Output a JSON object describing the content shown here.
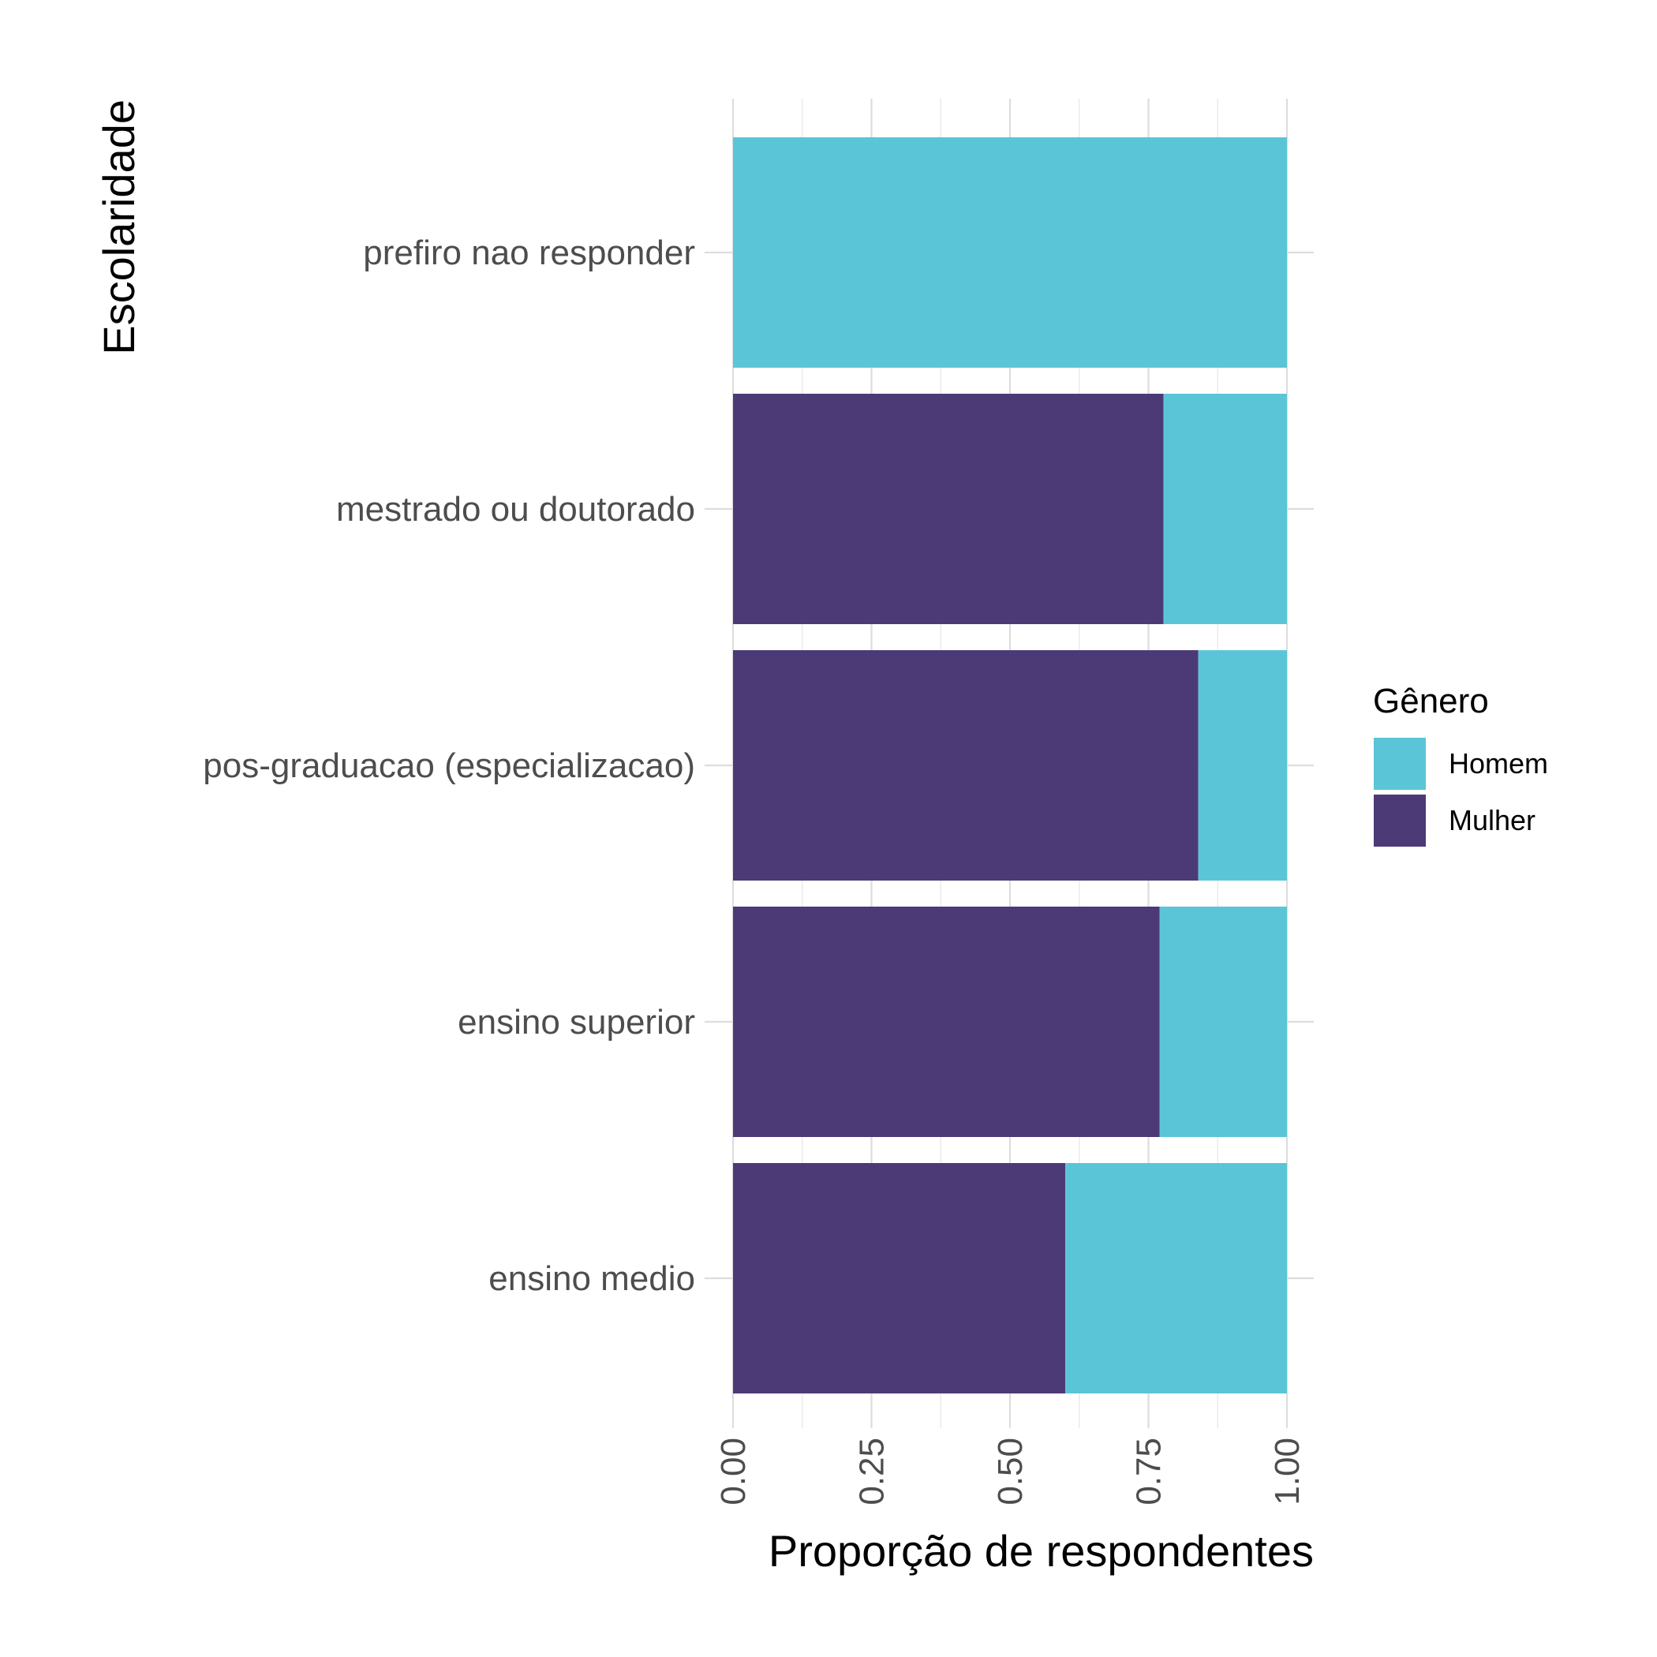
{
  "chart_data": {
    "type": "bar",
    "orientation": "horizontal",
    "stacked": true,
    "normalized": true,
    "xlabel": "Proporção de respondentes",
    "ylabel": "Escolaridade",
    "xlim": [
      0,
      1
    ],
    "x_ticks": [
      "0.00",
      "0.25",
      "0.50",
      "0.75",
      "1.00"
    ],
    "categories": [
      "prefiro nao responder",
      "mestrado ou doutorado",
      "pos-graduacao (especializacao)",
      "ensino superior",
      "ensino medio"
    ],
    "series": [
      {
        "name": "Mulher",
        "color": "#4c3a76",
        "values": [
          0.0,
          0.777,
          0.84,
          0.77,
          0.6
        ]
      },
      {
        "name": "Homem",
        "color": "#5bc5d8",
        "values": [
          1.0,
          0.223,
          0.16,
          0.23,
          0.4
        ]
      }
    ],
    "legend": {
      "title": "Gênero",
      "position": "right",
      "entries": [
        {
          "label": "Homem",
          "color": "#5bc5d8"
        },
        {
          "label": "Mulher",
          "color": "#4c3a76"
        }
      ]
    },
    "grid": true
  }
}
